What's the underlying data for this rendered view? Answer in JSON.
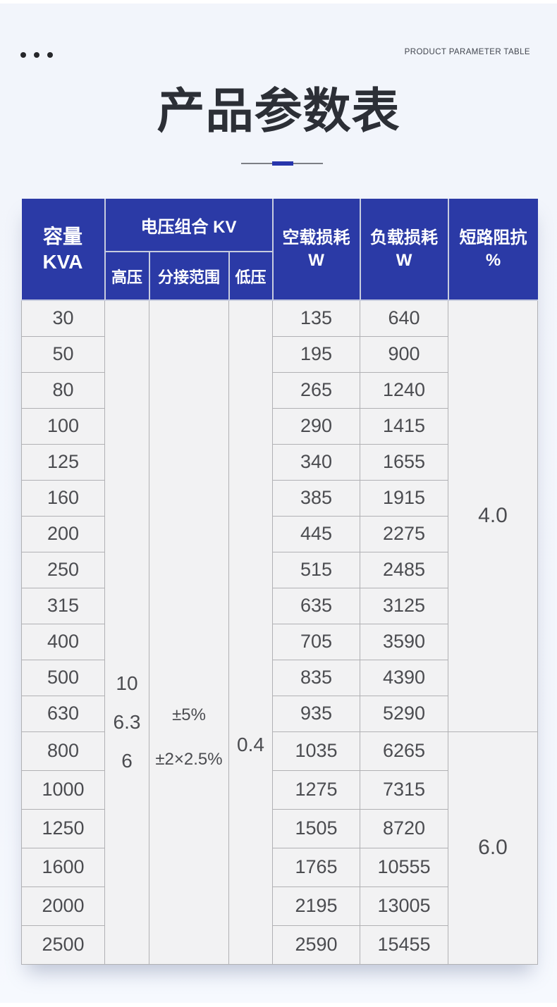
{
  "page": {
    "eyebrow": "PRODUCT PARAMETER TABLE",
    "title": "产品参数表"
  },
  "colors": {
    "header_blue": "#2b3aa6",
    "accent_blue": "#2735ac",
    "page_bg": "#f3f6fc",
    "cell_bg": "#f2f2f3",
    "grid_line": "#b1b1b4",
    "header_line": "#c7ccdf",
    "body_text": "#4b4c50",
    "title_text": "#2c2f36"
  },
  "table": {
    "header": {
      "capacity_line1": "容量",
      "capacity_line2": "KVA",
      "voltage_group": "电压组合 KV",
      "high_voltage": "高压",
      "tap_range": "分接范围",
      "low_voltage": "低压",
      "no_load_line1": "空载损耗",
      "no_load_line2": "W",
      "load_line1": "负载损耗",
      "load_line2": "W",
      "impedance_line1": "短路阻抗",
      "impedance_line2": "%"
    },
    "merged": {
      "high_voltage_values": [
        "10",
        "6.3",
        "6"
      ],
      "tap_range_values": [
        "±5%",
        "±2×2.5%"
      ],
      "low_voltage_value": "0.4"
    },
    "impedance_groups": [
      {
        "value": "4.0",
        "row_span": 12
      },
      {
        "value": "6.0",
        "row_span": 6
      }
    ],
    "rows": [
      {
        "capacity": "30",
        "no_load": "135",
        "load": "640"
      },
      {
        "capacity": "50",
        "no_load": "195",
        "load": "900"
      },
      {
        "capacity": "80",
        "no_load": "265",
        "load": "1240"
      },
      {
        "capacity": "100",
        "no_load": "290",
        "load": "1415"
      },
      {
        "capacity": "125",
        "no_load": "340",
        "load": "1655"
      },
      {
        "capacity": "160",
        "no_load": "385",
        "load": "1915"
      },
      {
        "capacity": "200",
        "no_load": "445",
        "load": "2275"
      },
      {
        "capacity": "250",
        "no_load": "515",
        "load": "2485"
      },
      {
        "capacity": "315",
        "no_load": "635",
        "load": "3125"
      },
      {
        "capacity": "400",
        "no_load": "705",
        "load": "3590"
      },
      {
        "capacity": "500",
        "no_load": "835",
        "load": "4390"
      },
      {
        "capacity": "630",
        "no_load": "935",
        "load": "5290"
      },
      {
        "capacity": "800",
        "no_load": "1035",
        "load": "6265"
      },
      {
        "capacity": "1000",
        "no_load": "1275",
        "load": "7315"
      },
      {
        "capacity": "1250",
        "no_load": "1505",
        "load": "8720"
      },
      {
        "capacity": "1600",
        "no_load": "1765",
        "load": "10555"
      },
      {
        "capacity": "2000",
        "no_load": "2195",
        "load": "13005"
      },
      {
        "capacity": "2500",
        "no_load": "2590",
        "load": "15455"
      }
    ]
  }
}
